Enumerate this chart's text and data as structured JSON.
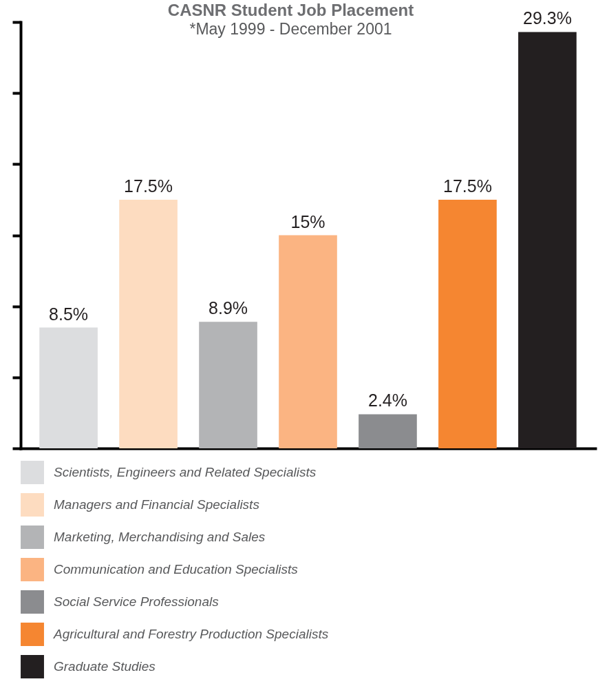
{
  "chart_data": {
    "type": "bar",
    "title": "CASNR Student Job Placement",
    "subtitle": "*May 1999 - December 2001",
    "categories": [
      null,
      null,
      null,
      null,
      null,
      null,
      null
    ],
    "series": [
      {
        "name": "Scientists, Engineers and Related Specialists",
        "color": "#dcdddf",
        "values": [
          8.5,
          null,
          null,
          null,
          null,
          null,
          null
        ],
        "value_labels": [
          "8.5%",
          null,
          null,
          null,
          null,
          null,
          null
        ]
      },
      {
        "name": "Managers and Financial Specialists",
        "color": "#fddcc0",
        "values": [
          null,
          17.5,
          null,
          null,
          null,
          null,
          null
        ],
        "value_labels": [
          null,
          "17.5%",
          null,
          null,
          null,
          null,
          null
        ]
      },
      {
        "name": "Marketing, Merchandising and Sales",
        "color": "#b3b4b6",
        "values": [
          null,
          null,
          8.9,
          null,
          null,
          null,
          null
        ],
        "value_labels": [
          null,
          null,
          "8.9%",
          null,
          null,
          null,
          null
        ]
      },
      {
        "name": "Communication and Education Specialists",
        "color": "#fbb482",
        "values": [
          null,
          null,
          null,
          15,
          null,
          null,
          null
        ],
        "value_labels": [
          null,
          null,
          null,
          "15%",
          null,
          null,
          null
        ]
      },
      {
        "name": "Social Service Professionals",
        "color": "#8b8c8f",
        "values": [
          null,
          null,
          null,
          null,
          2.4,
          null,
          null
        ],
        "value_labels": [
          null,
          null,
          null,
          null,
          "2.4%",
          null,
          null
        ]
      },
      {
        "name": "Agricultural and Forestry Production Specialists",
        "color": "#f58631",
        "values": [
          null,
          null,
          null,
          null,
          null,
          17.5,
          null
        ],
        "value_labels": [
          null,
          null,
          null,
          null,
          null,
          "17.5%",
          null
        ]
      },
      {
        "name": "Graduate Studies",
        "color": "#231f20",
        "values": [
          null,
          null,
          null,
          null,
          null,
          null,
          29.3
        ],
        "value_labels": [
          null,
          null,
          null,
          null,
          null,
          null,
          "29.3%"
        ]
      }
    ],
    "stacked": true,
    "ylim": [
      0,
      30
    ],
    "yticks": [
      0,
      5,
      10,
      15,
      20,
      25,
      30
    ],
    "legend": "bottom",
    "tick_labels": false
  }
}
